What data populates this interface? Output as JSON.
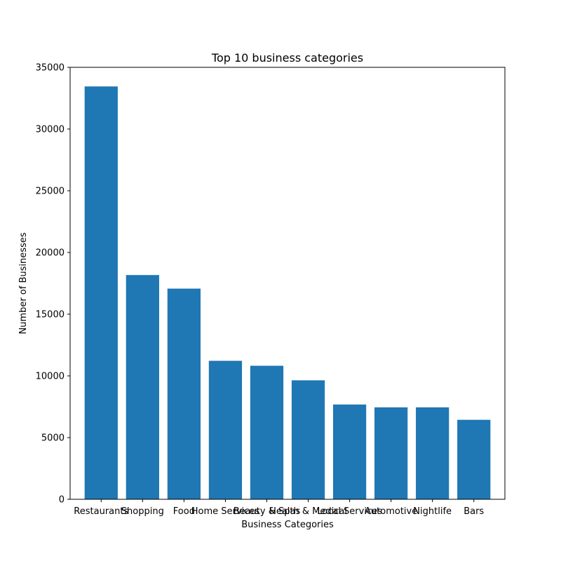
{
  "chart_data": {
    "type": "bar",
    "title": "Top 10 business categories",
    "xlabel": "Business Categories",
    "ylabel": "Number of Businesses",
    "categories": [
      "Restaurants",
      "Shopping",
      "Food",
      "Home Services",
      "Beauty & Spas",
      "Health & Medical",
      "Local Services",
      "Automotive",
      "Nightlife",
      "Bars"
    ],
    "values": [
      33450,
      18170,
      17070,
      11220,
      10820,
      9640,
      7680,
      7450,
      7450,
      6440
    ],
    "ylim": [
      0,
      35000
    ],
    "yticks": [
      0,
      5000,
      10000,
      15000,
      20000,
      25000,
      30000,
      35000
    ],
    "grid": false,
    "legend": "none",
    "bar_color": "#1f77b4"
  }
}
